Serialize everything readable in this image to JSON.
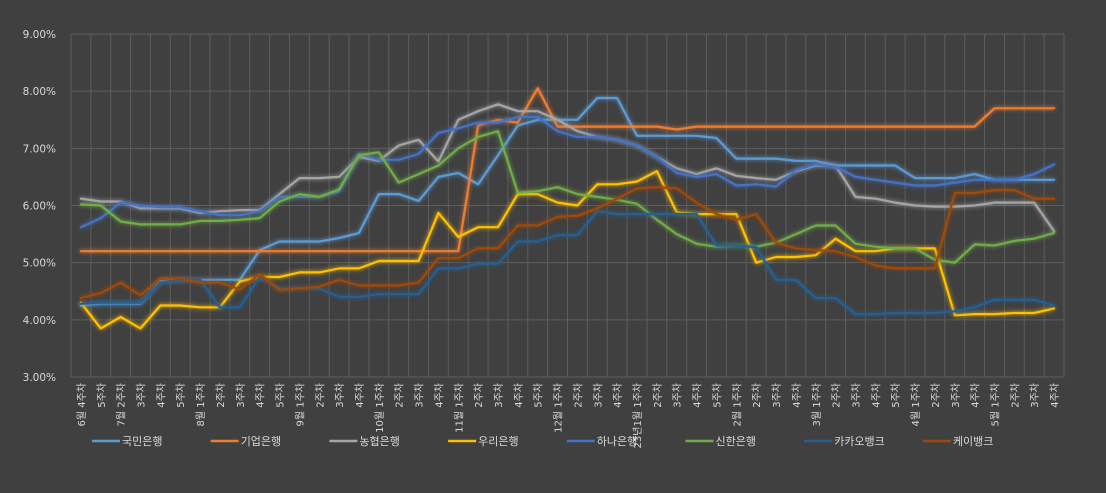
{
  "chart_data": {
    "type": "line",
    "title": "",
    "xlabel": "",
    "ylabel": "",
    "ylim": [
      0.03,
      0.09
    ],
    "yticks": [
      "3.00%",
      "4.00%",
      "5.00%",
      "6.00%",
      "7.00%",
      "8.00%",
      "9.00%"
    ],
    "grid": true,
    "legend_position": "bottom",
    "categories": [
      "6월 4주차",
      "5주차",
      "7월 2주차",
      "3주차",
      "4주차",
      "5주차",
      "8월 1주차",
      "2주차",
      "3주차",
      "4주차",
      "5주차",
      "9월 1주차",
      "2주차",
      "3주차",
      "4주차",
      "10월 1주차",
      "2주차",
      "3주차",
      "4주차",
      "11월 1주차",
      "2주차",
      "3주차",
      "4주차",
      "5주차",
      "12월 1주차",
      "2주차",
      "3주차",
      "4주차",
      "23년1월 1주차",
      "2주차",
      "3주차",
      "4주차",
      "5주차",
      "2월 1주차",
      "2주차",
      "3주차",
      "4주차",
      "3월 1주차",
      "2주차",
      "3주차",
      "4주차",
      "5주차",
      "4월 1주차",
      "2주차",
      "3주차",
      "4주차",
      "5월 1주차",
      "2주차",
      "3주차",
      "4주차"
    ],
    "xtick_labels": [
      "6월 4주차",
      "5주차",
      "7월 2주차",
      "3주차",
      "4주차",
      "5주차",
      "8월 1주차",
      "2주차",
      "3주차",
      "4주차",
      "5주차",
      "9월 1주차",
      "2주차",
      "3주차",
      "4주차",
      "10월 1주차",
      "2주차",
      "3주차",
      "4주차",
      "11월 1주차",
      "2주차",
      "3주차",
      "4주차",
      "5주차",
      "12월 1주차",
      "2주차",
      "3주차",
      "4주차",
      "23년1월 1주차",
      "2주차",
      "3주차",
      "4주차",
      "5주차",
      "2월 1주차",
      "2주차",
      "3주차",
      "4주차",
      "3월 1주차",
      "2주차",
      "3주차",
      "4주차",
      "5주차",
      "4월 1주차",
      "2주차",
      "3주차",
      "4주차",
      "5월 1주차",
      "2주차",
      "3주차",
      "4주차"
    ],
    "series": [
      {
        "name": "국민은행",
        "color": "#5b9bd5",
        "values": [
          4.25,
          4.28,
          4.28,
          4.28,
          4.68,
          4.7,
          4.7,
          4.7,
          4.7,
          5.22,
          5.37,
          5.37,
          5.37,
          5.43,
          5.52,
          6.2,
          6.2,
          6.08,
          6.5,
          6.57,
          6.37,
          6.88,
          7.4,
          7.5,
          7.5,
          7.5,
          7.88,
          7.88,
          7.22,
          7.22,
          7.22,
          7.22,
          7.18,
          6.82,
          6.82,
          6.82,
          6.78,
          6.78,
          6.7,
          6.7,
          6.7,
          6.7,
          6.48,
          6.48,
          6.48,
          6.55,
          6.45,
          6.45,
          6.45,
          6.45
        ]
      },
      {
        "name": "기업은행",
        "color": "#ed7d31",
        "values": [
          5.2,
          5.2,
          5.2,
          5.2,
          5.2,
          5.2,
          5.2,
          5.2,
          5.2,
          5.2,
          5.2,
          5.2,
          5.2,
          5.2,
          5.2,
          5.2,
          5.2,
          5.2,
          5.2,
          5.2,
          7.4,
          7.5,
          7.45,
          8.05,
          7.38,
          7.38,
          7.38,
          7.38,
          7.38,
          7.38,
          7.33,
          7.38,
          7.38,
          7.38,
          7.38,
          7.38,
          7.38,
          7.38,
          7.38,
          7.38,
          7.38,
          7.38,
          7.38,
          7.38,
          7.38,
          7.38,
          7.7,
          7.7,
          7.7,
          7.7
        ]
      },
      {
        "name": "농협은행",
        "color": "#a5a5a5",
        "values": [
          6.12,
          6.07,
          6.07,
          5.95,
          5.95,
          5.95,
          5.87,
          5.9,
          5.92,
          5.92,
          6.2,
          6.48,
          6.48,
          6.5,
          6.85,
          6.78,
          7.05,
          7.15,
          6.77,
          7.5,
          7.65,
          7.77,
          7.65,
          7.65,
          7.5,
          7.3,
          7.2,
          7.15,
          7.05,
          6.85,
          6.65,
          6.55,
          6.65,
          6.52,
          6.48,
          6.45,
          6.6,
          6.7,
          6.7,
          6.15,
          6.12,
          6.05,
          6.0,
          5.98,
          5.98,
          6.0,
          6.05,
          6.05,
          6.05,
          5.55
        ]
      },
      {
        "name": "우리은행",
        "color": "#ffc000",
        "values": [
          4.3,
          3.85,
          4.05,
          3.85,
          4.25,
          4.25,
          4.22,
          4.22,
          4.67,
          4.75,
          4.75,
          4.83,
          4.83,
          4.9,
          4.9,
          5.03,
          5.03,
          5.03,
          5.87,
          5.45,
          5.62,
          5.62,
          6.2,
          6.2,
          6.05,
          6.0,
          6.37,
          6.37,
          6.42,
          6.6,
          5.88,
          5.85,
          5.85,
          5.85,
          5.0,
          5.1,
          5.1,
          5.13,
          5.42,
          5.2,
          5.2,
          5.25,
          5.25,
          5.25,
          4.08,
          4.1,
          4.1,
          4.12,
          4.12,
          4.2
        ]
      },
      {
        "name": "하나은행",
        "color": "#4472c4",
        "values": [
          5.62,
          5.78,
          6.05,
          6.0,
          5.97,
          5.97,
          5.9,
          5.83,
          5.83,
          5.9,
          6.15,
          6.15,
          6.15,
          6.25,
          6.9,
          6.8,
          6.8,
          6.9,
          7.27,
          7.35,
          7.45,
          7.45,
          7.55,
          7.55,
          7.3,
          7.2,
          7.2,
          7.15,
          7.05,
          6.85,
          6.57,
          6.5,
          6.55,
          6.35,
          6.37,
          6.33,
          6.62,
          6.72,
          6.68,
          6.5,
          6.45,
          6.4,
          6.35,
          6.35,
          6.4,
          6.45,
          6.45,
          6.45,
          6.55,
          6.72
        ]
      },
      {
        "name": "신한은행",
        "color": "#70ad47",
        "values": [
          6.02,
          6.0,
          5.72,
          5.67,
          5.67,
          5.67,
          5.73,
          5.73,
          5.75,
          5.78,
          6.07,
          6.2,
          6.15,
          6.28,
          6.88,
          6.93,
          6.4,
          6.55,
          6.7,
          7.0,
          7.2,
          7.3,
          6.22,
          6.25,
          6.32,
          6.2,
          6.15,
          6.1,
          6.03,
          5.75,
          5.5,
          5.33,
          5.28,
          5.3,
          5.28,
          5.35,
          5.5,
          5.65,
          5.65,
          5.33,
          5.28,
          5.25,
          5.25,
          5.05,
          5.0,
          5.32,
          5.3,
          5.38,
          5.42,
          5.52
        ]
      },
      {
        "name": "카카오뱅크",
        "color": "#255e91",
        "values": [
          4.28,
          4.3,
          4.3,
          4.3,
          4.65,
          4.7,
          4.7,
          4.22,
          4.22,
          4.75,
          4.55,
          4.55,
          4.55,
          4.4,
          4.4,
          4.45,
          4.45,
          4.45,
          4.9,
          4.9,
          4.98,
          4.98,
          5.37,
          5.37,
          5.48,
          5.48,
          5.9,
          5.85,
          5.85,
          5.85,
          5.85,
          5.85,
          5.3,
          5.3,
          5.27,
          4.7,
          4.7,
          4.38,
          4.38,
          4.1,
          4.1,
          4.12,
          4.12,
          4.12,
          4.15,
          4.22,
          4.35,
          4.35,
          4.35,
          4.25
        ]
      },
      {
        "name": "케이뱅크",
        "color": "#9e480e",
        "values": [
          4.38,
          4.47,
          4.65,
          4.43,
          4.73,
          4.73,
          4.65,
          4.65,
          4.53,
          4.8,
          4.52,
          4.55,
          4.58,
          4.7,
          4.6,
          4.6,
          4.6,
          4.65,
          5.08,
          5.08,
          5.25,
          5.25,
          5.65,
          5.65,
          5.8,
          5.82,
          5.95,
          6.12,
          6.3,
          6.32,
          6.3,
          6.05,
          5.85,
          5.75,
          5.85,
          5.35,
          5.25,
          5.22,
          5.2,
          5.1,
          4.95,
          4.9,
          4.9,
          4.9,
          6.22,
          6.22,
          6.27,
          6.27,
          6.12,
          6.12
        ]
      }
    ]
  }
}
